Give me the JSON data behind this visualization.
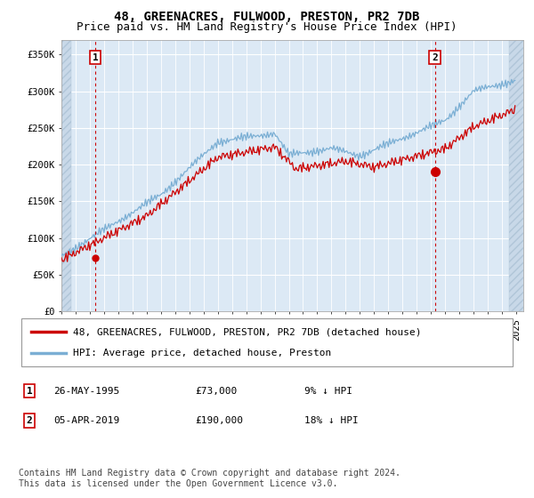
{
  "title": "48, GREENACRES, FULWOOD, PRESTON, PR2 7DB",
  "subtitle": "Price paid vs. HM Land Registry's House Price Index (HPI)",
  "ylabel_ticks": [
    "£0",
    "£50K",
    "£100K",
    "£150K",
    "£200K",
    "£250K",
    "£300K",
    "£350K"
  ],
  "ytick_values": [
    0,
    50000,
    100000,
    150000,
    200000,
    250000,
    300000,
    350000
  ],
  "ylim": [
    0,
    370000
  ],
  "xlim_start": 1993.0,
  "xlim_end": 2025.5,
  "sale1_date": 1995.4,
  "sale1_price": 73000,
  "sale2_date": 2019.27,
  "sale2_price": 190000,
  "hpi_color": "#7bafd4",
  "price_color": "#cc0000",
  "marker_color": "#cc0000",
  "dashed_line_color": "#cc0000",
  "bg_plot_color": "#dce9f5",
  "bg_hatch_color": "#c8d8e8",
  "grid_color": "#ffffff",
  "legend_label1": "48, GREENACRES, FULWOOD, PRESTON, PR2 7DB (detached house)",
  "legend_label2": "HPI: Average price, detached house, Preston",
  "note1_num": "1",
  "note1_date": "26-MAY-1995",
  "note1_price": "£73,000",
  "note1_hpi": "9% ↓ HPI",
  "note2_num": "2",
  "note2_date": "05-APR-2019",
  "note2_price": "£190,000",
  "note2_hpi": "18% ↓ HPI",
  "footer": "Contains HM Land Registry data © Crown copyright and database right 2024.\nThis data is licensed under the Open Government Licence v3.0.",
  "title_fontsize": 10,
  "subtitle_fontsize": 9,
  "tick_fontsize": 7.5,
  "legend_fontsize": 8,
  "note_fontsize": 8,
  "footer_fontsize": 7
}
